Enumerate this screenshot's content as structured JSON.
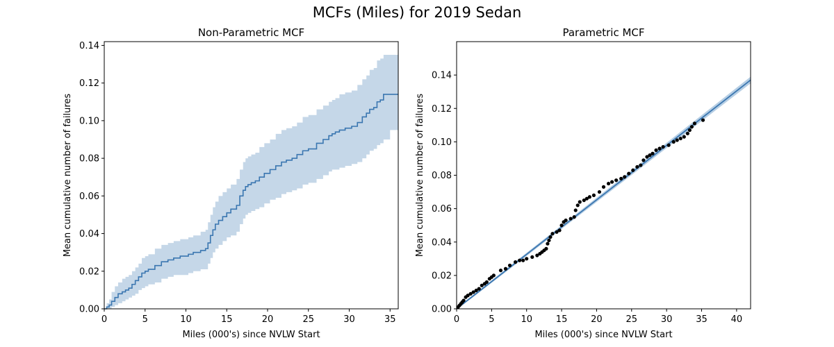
{
  "figure": {
    "title": "MCFs (Miles) for 2019 Sedan",
    "colors": {
      "line": "#3a76b0",
      "band": "#c5d7e8",
      "points": "#000000",
      "fit_band": "#a9c6df"
    }
  },
  "chart_data": [
    {
      "type": "line",
      "subtype": "step-with-confidence-band",
      "title": "Non-Parametric MCF",
      "xlabel": "Miles (000's) since NVLW Start",
      "ylabel": "Mean cumulative number of failures",
      "xlim": [
        0,
        36
      ],
      "ylim": [
        0,
        0.142
      ],
      "xticks": [
        0,
        5,
        10,
        15,
        20,
        25,
        30,
        35
      ],
      "yticks": [
        0.0,
        0.02,
        0.04,
        0.06,
        0.08,
        0.1,
        0.12,
        0.14
      ],
      "ytick_labels": [
        "0.00",
        "0.02",
        "0.04",
        "0.06",
        "0.08",
        "0.10",
        "0.12",
        "0.14"
      ],
      "grid": false,
      "series": [
        {
          "x": [
            0,
            0.3,
            0.6,
            0.9,
            1.3,
            1.7,
            2.2,
            2.6,
            3.0,
            3.4,
            3.8,
            4.2,
            4.6,
            5.0,
            5.4,
            6.2,
            7.0,
            7.8,
            8.5,
            9.3,
            10.3,
            10.9,
            11.8,
            12.4,
            12.7,
            13.0,
            13.3,
            13.6,
            14.0,
            14.5,
            15.0,
            15.5,
            16.2,
            16.6,
            17.0,
            17.3,
            17.6,
            18.0,
            18.5,
            19.0,
            19.6,
            20.3,
            21.0,
            21.7,
            22.3,
            23.0,
            23.6,
            24.3,
            25.0,
            26.0,
            26.8,
            27.5,
            27.9,
            28.3,
            28.8,
            29.5,
            30.3,
            31.0,
            31.6,
            32.1,
            32.5,
            33.0,
            33.4,
            33.8,
            34.2,
            35.0,
            36.0
          ],
          "y": [
            0,
            0.001,
            0.002,
            0.004,
            0.006,
            0.008,
            0.009,
            0.01,
            0.011,
            0.013,
            0.015,
            0.017,
            0.019,
            0.02,
            0.021,
            0.023,
            0.025,
            0.026,
            0.027,
            0.028,
            0.029,
            0.03,
            0.031,
            0.032,
            0.035,
            0.039,
            0.042,
            0.045,
            0.047,
            0.049,
            0.051,
            0.053,
            0.055,
            0.06,
            0.063,
            0.065,
            0.066,
            0.067,
            0.068,
            0.07,
            0.072,
            0.074,
            0.076,
            0.078,
            0.079,
            0.08,
            0.082,
            0.084,
            0.085,
            0.088,
            0.09,
            0.092,
            0.093,
            0.094,
            0.095,
            0.096,
            0.097,
            0.099,
            0.102,
            0.104,
            0.106,
            0.107,
            0.11,
            0.111,
            0.114,
            0.114,
            0.114
          ],
          "lower": [
            0,
            0,
            0,
            0.001,
            0.002,
            0.003,
            0.004,
            0.005,
            0.006,
            0.007,
            0.008,
            0.01,
            0.011,
            0.012,
            0.013,
            0.014,
            0.016,
            0.017,
            0.018,
            0.018,
            0.019,
            0.02,
            0.021,
            0.021,
            0.024,
            0.027,
            0.03,
            0.032,
            0.034,
            0.036,
            0.038,
            0.039,
            0.041,
            0.045,
            0.048,
            0.05,
            0.051,
            0.052,
            0.053,
            0.054,
            0.056,
            0.058,
            0.059,
            0.061,
            0.062,
            0.063,
            0.064,
            0.066,
            0.067,
            0.069,
            0.071,
            0.073,
            0.074,
            0.074,
            0.075,
            0.076,
            0.077,
            0.078,
            0.08,
            0.082,
            0.084,
            0.085,
            0.087,
            0.088,
            0.09,
            0.095,
            0.096
          ],
          "upper": [
            0,
            0.003,
            0.005,
            0.009,
            0.012,
            0.014,
            0.016,
            0.017,
            0.018,
            0.02,
            0.022,
            0.024,
            0.027,
            0.028,
            0.029,
            0.032,
            0.034,
            0.035,
            0.036,
            0.037,
            0.038,
            0.039,
            0.041,
            0.042,
            0.046,
            0.05,
            0.054,
            0.057,
            0.06,
            0.062,
            0.064,
            0.066,
            0.069,
            0.074,
            0.078,
            0.08,
            0.081,
            0.082,
            0.083,
            0.086,
            0.088,
            0.09,
            0.093,
            0.095,
            0.096,
            0.097,
            0.099,
            0.102,
            0.103,
            0.106,
            0.108,
            0.11,
            0.111,
            0.112,
            0.114,
            0.115,
            0.116,
            0.119,
            0.122,
            0.124,
            0.127,
            0.128,
            0.132,
            0.133,
            0.135,
            0.135,
            0.135
          ]
        }
      ]
    },
    {
      "type": "scatter",
      "subtype": "scatter-with-fitted-line",
      "title": "Parametric MCF",
      "xlabel": "Miles (000's) since NVLW Start",
      "ylabel": "Mean cumulative number of failures",
      "xlim": [
        0,
        42
      ],
      "ylim": [
        0,
        0.16
      ],
      "xticks": [
        0,
        5,
        10,
        15,
        20,
        25,
        30,
        35,
        40
      ],
      "yticks": [
        0.0,
        0.02,
        0.04,
        0.06,
        0.08,
        0.1,
        0.12,
        0.14
      ],
      "ytick_labels": [
        "0.00",
        "0.02",
        "0.04",
        "0.06",
        "0.08",
        "0.10",
        "0.12",
        "0.14"
      ],
      "grid": false,
      "fit": {
        "x": [
          0,
          42
        ],
        "y": [
          0,
          0.137
        ],
        "band_halfwidth": 0.002
      },
      "points": {
        "x": [
          0.2,
          0.4,
          0.6,
          0.8,
          1.0,
          1.3,
          1.6,
          2.0,
          2.4,
          2.8,
          3.2,
          3.6,
          4.0,
          4.3,
          4.7,
          5.0,
          5.3,
          6.3,
          7.0,
          7.6,
          8.4,
          9.0,
          9.5,
          10.0,
          10.8,
          11.5,
          11.9,
          12.2,
          12.5,
          12.8,
          13.0,
          13.2,
          13.4,
          13.7,
          14.3,
          14.7,
          15.0,
          15.3,
          15.6,
          16.3,
          16.8,
          17.0,
          17.3,
          17.6,
          18.2,
          18.6,
          19.0,
          19.6,
          20.4,
          21.0,
          21.7,
          22.2,
          22.8,
          23.5,
          24.0,
          24.6,
          25.2,
          25.8,
          26.3,
          26.7,
          27.2,
          27.6,
          28.0,
          28.5,
          29.0,
          29.5,
          30.3,
          31.0,
          31.5,
          32.0,
          32.5,
          33.0,
          33.3,
          33.6,
          34.0,
          35.2
        ],
        "y": [
          0.001,
          0.002,
          0.003,
          0.004,
          0.005,
          0.007,
          0.008,
          0.009,
          0.01,
          0.011,
          0.012,
          0.014,
          0.015,
          0.016,
          0.018,
          0.019,
          0.02,
          0.023,
          0.024,
          0.026,
          0.028,
          0.029,
          0.029,
          0.03,
          0.031,
          0.032,
          0.033,
          0.034,
          0.035,
          0.036,
          0.039,
          0.041,
          0.043,
          0.045,
          0.046,
          0.047,
          0.05,
          0.052,
          0.053,
          0.054,
          0.055,
          0.059,
          0.062,
          0.064,
          0.065,
          0.066,
          0.067,
          0.068,
          0.07,
          0.073,
          0.075,
          0.076,
          0.077,
          0.078,
          0.079,
          0.081,
          0.083,
          0.085,
          0.086,
          0.089,
          0.091,
          0.092,
          0.093,
          0.095,
          0.096,
          0.097,
          0.098,
          0.1,
          0.101,
          0.102,
          0.103,
          0.105,
          0.107,
          0.109,
          0.111,
          0.113
        ]
      }
    }
  ]
}
